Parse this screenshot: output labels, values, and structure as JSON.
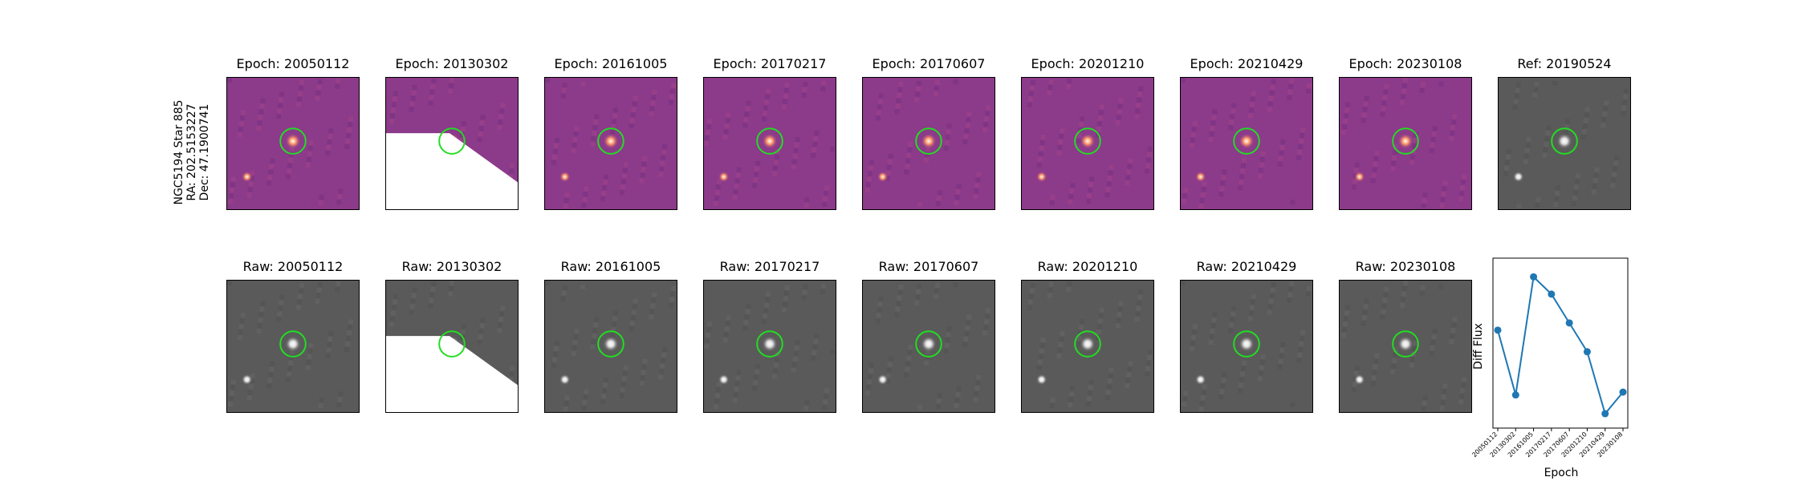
{
  "target": {
    "name": "NGC5194 Star 885",
    "ra": "RA: 202.5153227",
    "dec": "Dec: 47.1900741"
  },
  "diff_panels": [
    {
      "title": "Epoch: 20050112"
    },
    {
      "title": "Epoch: 20130302"
    },
    {
      "title": "Epoch: 20161005"
    },
    {
      "title": "Epoch: 20170217"
    },
    {
      "title": "Epoch: 20170607"
    },
    {
      "title": "Epoch: 20201210"
    },
    {
      "title": "Epoch: 20210429"
    },
    {
      "title": "Epoch: 20230108"
    },
    {
      "title": "Ref: 20190524"
    }
  ],
  "raw_panels": [
    {
      "title": "Raw: 20050112"
    },
    {
      "title": "Raw: 20130302"
    },
    {
      "title": "Raw: 20161005"
    },
    {
      "title": "Raw: 20170217"
    },
    {
      "title": "Raw: 20170607"
    },
    {
      "title": "Raw: 20201210"
    },
    {
      "title": "Raw: 20210429"
    },
    {
      "title": "Raw: 20230108"
    }
  ],
  "colors": {
    "marker_circle": "#22dd22",
    "series": "#1f77b4",
    "diff_background": "#8c3a8a",
    "raw_background": "#5a5a5a"
  },
  "chart_data": {
    "type": "line",
    "title": "",
    "xlabel": "Epoch",
    "ylabel": "Diff Flux",
    "categories": [
      "20050112",
      "20130302",
      "20161005",
      "20170217",
      "20170607",
      "20201210",
      "20210429",
      "20230108"
    ],
    "series": [
      {
        "values": [
          0.63,
          0.18,
          1.0,
          0.88,
          0.68,
          0.48,
          0.05,
          0.2
        ]
      }
    ],
    "ylim": [
      -0.05,
      1.13
    ],
    "grid": false,
    "y_tick_labels_shown": false
  }
}
